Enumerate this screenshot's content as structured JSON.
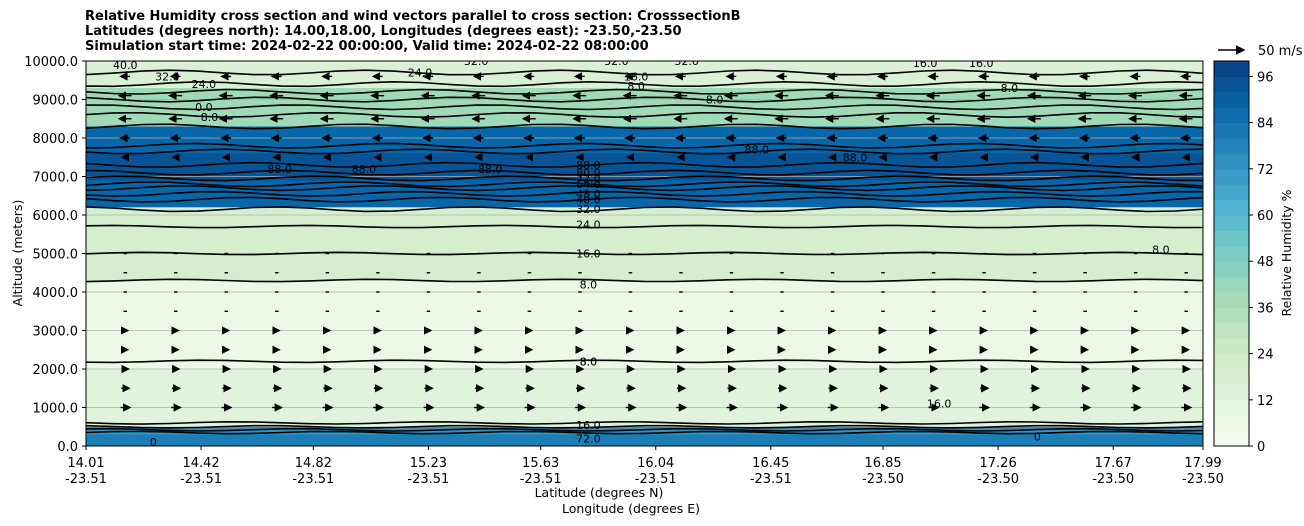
{
  "title_lines": [
    "Relative Humidity cross section and wind vectors parallel to cross section: CrosssectionB",
    "Latitudes (degrees north): 14.00,18.00, Longitudes (degrees east): -23.50,-23.50",
    "Simulation start time: 2024-02-22 00:00:00, Valid time: 2024-02-22 08:00:00"
  ],
  "chart_data": {
    "type": "heatmap",
    "ylabel": "Altitude (meters)",
    "xlabel_lines": [
      "Latitude (degrees N)",
      "Longitude (degrees E)"
    ],
    "ylim": [
      0,
      10000
    ],
    "yticks": [
      "0.0",
      "1000.0",
      "2000.0",
      "3000.0",
      "4000.0",
      "5000.0",
      "6000.0",
      "7000.0",
      "8000.0",
      "9000.0",
      "10000.0"
    ],
    "ytick_values": [
      0,
      1000,
      2000,
      3000,
      4000,
      5000,
      6000,
      7000,
      8000,
      9000,
      10000
    ],
    "xlim": [
      14.01,
      17.99
    ],
    "xtick_lat": [
      "14.01",
      "14.42",
      "14.82",
      "15.23",
      "15.63",
      "16.04",
      "16.45",
      "16.85",
      "17.26",
      "17.67",
      "17.99"
    ],
    "xtick_lon": [
      "-23.51",
      "-23.51",
      "-23.51",
      "-23.51",
      "-23.51",
      "-23.51",
      "-23.51",
      "-23.50",
      "-23.50",
      "-23.50",
      "-23.50"
    ],
    "xtick_values": [
      14.01,
      14.42,
      14.82,
      15.23,
      15.63,
      16.04,
      16.45,
      16.85,
      17.26,
      17.67,
      17.99
    ],
    "colorbar": {
      "label": "Relative Humidity %",
      "ticks": [
        "0",
        "12",
        "24",
        "36",
        "48",
        "60",
        "72",
        "84",
        "96"
      ],
      "tick_values": [
        0,
        12,
        24,
        36,
        48,
        60,
        72,
        84,
        96
      ],
      "range": [
        0,
        100
      ],
      "colormap": "GnBu"
    },
    "quiver_key": "50 m/s",
    "humidity_layers": [
      {
        "alt_range": [
          0,
          500
        ],
        "rh": 72,
        "description_values": [
          72.0,
          80.0,
          88.0
        ]
      },
      {
        "alt_range": [
          500,
          2000
        ],
        "rh": 12
      },
      {
        "alt_range": [
          2000,
          4300
        ],
        "rh": 6
      },
      {
        "alt_range": [
          4300,
          6200
        ],
        "rh": 20
      },
      {
        "alt_range": [
          6200,
          8300
        ],
        "rh": 88
      },
      {
        "alt_range": [
          8300,
          9300
        ],
        "rh": 40
      },
      {
        "alt_range": [
          9300,
          10000
        ],
        "rh": 16
      }
    ],
    "contour_labels": [
      {
        "text": "8.0",
        "x": 15.8,
        "y": 2200
      },
      {
        "text": "8.0",
        "x": 15.8,
        "y": 4200
      },
      {
        "text": "16.0",
        "x": 15.8,
        "y": 5000
      },
      {
        "text": "24.0",
        "x": 15.8,
        "y": 5750
      },
      {
        "text": "32.0",
        "x": 15.8,
        "y": 6150
      },
      {
        "text": "40.0",
        "x": 15.8,
        "y": 6400
      },
      {
        "text": "48.0",
        "x": 15.8,
        "y": 6550
      },
      {
        "text": "64.0",
        "x": 15.8,
        "y": 6800
      },
      {
        "text": "72.0",
        "x": 15.8,
        "y": 6950
      },
      {
        "text": "80.0",
        "x": 15.8,
        "y": 7100
      },
      {
        "text": "88.0",
        "x": 15.8,
        "y": 7300
      },
      {
        "text": "88.0",
        "x": 14.7,
        "y": 7200
      },
      {
        "text": "88.0",
        "x": 15.0,
        "y": 7200
      },
      {
        "text": "88.0",
        "x": 15.45,
        "y": 7200
      },
      {
        "text": "88.0",
        "x": 16.4,
        "y": 7700
      },
      {
        "text": "88.0",
        "x": 16.75,
        "y": 7500
      },
      {
        "text": "8.0",
        "x": 14.45,
        "y": 8550
      },
      {
        "text": "0.0",
        "x": 14.43,
        "y": 8800
      },
      {
        "text": "24.0",
        "x": 14.43,
        "y": 9400
      },
      {
        "text": "32.0",
        "x": 14.3,
        "y": 9600
      },
      {
        "text": "40.0",
        "x": 14.15,
        "y": 9900
      },
      {
        "text": "24.0",
        "x": 15.2,
        "y": 9700
      },
      {
        "text": "16.0",
        "x": 15.97,
        "y": 9600
      },
      {
        "text": "8.0",
        "x": 15.97,
        "y": 9350
      },
      {
        "text": "8.0",
        "x": 16.25,
        "y": 9000
      },
      {
        "text": "8.0",
        "x": 17.3,
        "y": 9300
      },
      {
        "text": "16.0",
        "x": 17.0,
        "y": 9950
      },
      {
        "text": "16.0",
        "x": 17.2,
        "y": 9950
      },
      {
        "text": "32.0",
        "x": 15.4,
        "y": 10000
      },
      {
        "text": "32.0",
        "x": 15.9,
        "y": 10000
      },
      {
        "text": "32.0",
        "x": 16.15,
        "y": 10000
      },
      {
        "text": "8.0",
        "x": 17.84,
        "y": 5100
      },
      {
        "text": "16.0",
        "x": 17.05,
        "y": 1100
      },
      {
        "text": "8.0",
        "x": 15.8,
        "y": 2200
      },
      {
        "text": "16.0",
        "x": 15.8,
        "y": 550
      },
      {
        "text": "72.0",
        "x": 15.8,
        "y": 200
      },
      {
        "text": "0",
        "x": 17.4,
        "y": 250
      },
      {
        "text": "0",
        "x": 14.25,
        "y": 100
      }
    ],
    "wind_rows": [
      {
        "alt": 9600,
        "dir": -1,
        "speed": 0.25
      },
      {
        "alt": 9100,
        "dir": -1,
        "speed": 0.35
      },
      {
        "alt": 8500,
        "dir": -1,
        "speed": 0.35
      },
      {
        "alt": 8000,
        "dir": -1,
        "speed": 0.25
      },
      {
        "alt": 7500,
        "dir": -1,
        "speed": 0.15
      },
      {
        "alt": 5000,
        "dir": 1,
        "speed": 0.05
      },
      {
        "alt": 4500,
        "dir": 1,
        "speed": 0.05
      },
      {
        "alt": 4000,
        "dir": 1,
        "speed": 0.05
      },
      {
        "alt": 3500,
        "dir": 1,
        "speed": 0.05
      },
      {
        "alt": 3000,
        "dir": 1,
        "speed": 0.1
      },
      {
        "alt": 2500,
        "dir": 1,
        "speed": 0.1
      },
      {
        "alt": 2000,
        "dir": 1,
        "speed": 0.15
      },
      {
        "alt": 1500,
        "dir": 1,
        "speed": 0.2
      },
      {
        "alt": 1000,
        "dir": 1,
        "speed": 0.25
      }
    ]
  }
}
